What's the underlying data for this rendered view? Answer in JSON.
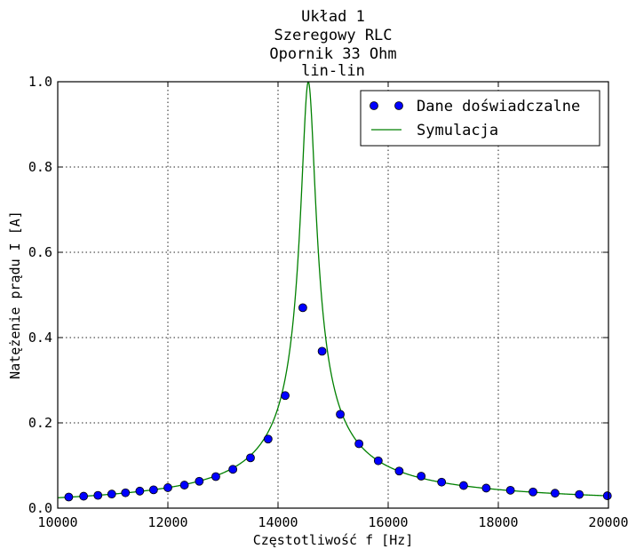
{
  "chart_data": {
    "type": "line",
    "title": [
      "Układ 1",
      "Szeregowy RLC",
      "Opornik 33 Ohm",
      "lin-lin"
    ],
    "xlabel": "Częstotliwość f [Hz]",
    "ylabel": "Natężenie prądu I [A]",
    "xlim": [
      10000,
      20000
    ],
    "ylim": [
      0.0,
      1.0
    ],
    "xticks": [
      10000,
      12000,
      14000,
      16000,
      18000,
      20000
    ],
    "xtick_labels": [
      "10000",
      "12000",
      "14000",
      "16000",
      "18000",
      "20000"
    ],
    "yticks": [
      0.0,
      0.2,
      0.4,
      0.6,
      0.8,
      1.0
    ],
    "ytick_labels": [
      "0.0",
      "0.2",
      "0.4",
      "0.6",
      "0.8",
      "1.0"
    ],
    "grid": true,
    "legend_position": "top-right",
    "series": [
      {
        "name": "Dane doświadczalne",
        "style": "markers",
        "color": "#0000ff",
        "x": [
          10200,
          10470,
          10730,
          10980,
          11230,
          11490,
          11740,
          12000,
          12300,
          12570,
          12870,
          13180,
          13500,
          13820,
          14130,
          14450,
          14800,
          15130,
          15470,
          15820,
          16200,
          16600,
          16970,
          17370,
          17780,
          18220,
          18630,
          19030,
          19470,
          19980
        ],
        "y": [
          0.026,
          0.028,
          0.03,
          0.033,
          0.036,
          0.04,
          0.043,
          0.048,
          0.054,
          0.063,
          0.074,
          0.091,
          0.118,
          0.162,
          0.264,
          0.47,
          0.368,
          0.22,
          0.151,
          0.111,
          0.087,
          0.075,
          0.061,
          0.053,
          0.047,
          0.042,
          0.038,
          0.035,
          0.032,
          0.029
        ]
      },
      {
        "name": "Symulacja",
        "style": "line",
        "color": "#008000",
        "model": {
          "f0": 14550,
          "q_factor": 53.5,
          "peak": 1.0
        }
      }
    ]
  }
}
